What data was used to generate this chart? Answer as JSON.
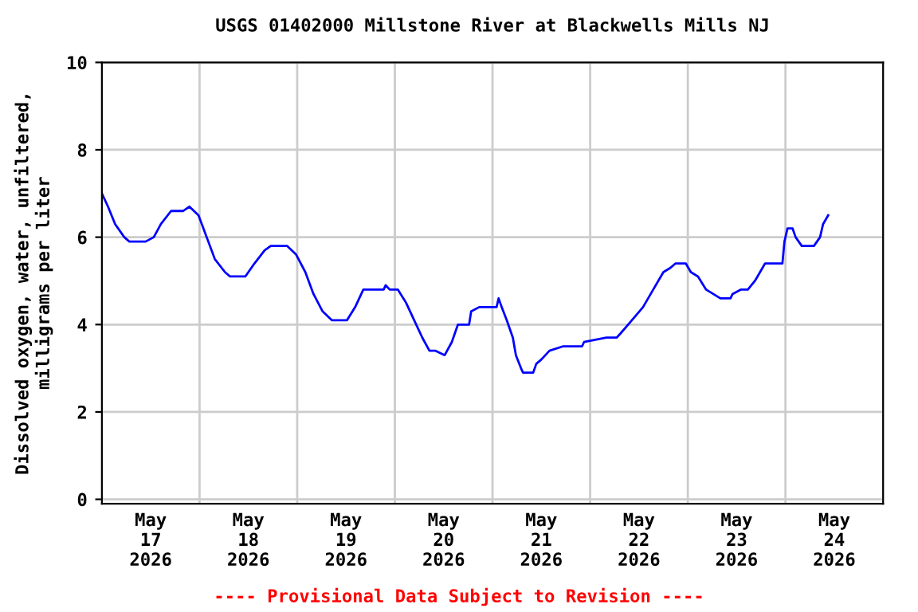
{
  "chart_data": {
    "type": "line",
    "title": "USGS 01402000 Millstone River at Blackwells Mills NJ",
    "ylabel": "Dissolved oxygen, water, unfiltered,\nmilligrams per liter",
    "annotations": [
      "---- Provisional Data Subject to Revision ----"
    ],
    "series": [
      {
        "color": "#0000ff",
        "x": [
          "2026-05-17T00:00",
          "2026-05-17T01:30",
          "2026-05-17T03:15",
          "2026-05-17T05:30",
          "2026-05-17T06:45",
          "2026-05-17T10:45",
          "2026-05-17T12:45",
          "2026-05-17T14:30",
          "2026-05-17T17:00",
          "2026-05-17T20:00",
          "2026-05-17T21:30",
          "2026-05-17T23:45",
          "2026-05-18T01:45",
          "2026-05-18T03:45",
          "2026-05-18T06:15",
          "2026-05-18T07:30",
          "2026-05-18T11:15",
          "2026-05-18T13:30",
          "2026-05-18T16:00",
          "2026-05-18T17:30",
          "2026-05-18T21:30",
          "2026-05-18T23:45",
          "2026-05-19T02:00",
          "2026-05-19T04:00",
          "2026-05-19T06:15",
          "2026-05-19T08:30",
          "2026-05-19T12:15",
          "2026-05-19T14:15",
          "2026-05-19T16:15",
          "2026-05-19T21:15",
          "2026-05-19T21:45",
          "2026-05-19T22:45",
          "2026-05-20T00:45",
          "2026-05-20T02:45",
          "2026-05-20T04:45",
          "2026-05-20T06:45",
          "2026-05-20T08:30",
          "2026-05-20T10:00",
          "2026-05-20T12:15",
          "2026-05-20T14:00",
          "2026-05-20T15:30",
          "2026-05-20T18:15",
          "2026-05-20T18:45",
          "2026-05-20T20:45",
          "2026-05-21T01:00",
          "2026-05-21T01:30",
          "2026-05-21T02:15",
          "2026-05-21T03:30",
          "2026-05-21T05:00",
          "2026-05-21T05:45",
          "2026-05-21T07:00",
          "2026-05-21T07:30",
          "2026-05-21T10:00",
          "2026-05-21T10:45",
          "2026-05-21T12:00",
          "2026-05-21T14:00",
          "2026-05-21T17:15",
          "2026-05-21T22:00",
          "2026-05-21T22:30",
          "2026-05-22T04:00",
          "2026-05-22T06:30",
          "2026-05-22T07:30",
          "2026-05-22T10:15",
          "2026-05-22T13:00",
          "2026-05-22T15:30",
          "2026-05-22T18:00",
          "2026-05-22T19:45",
          "2026-05-22T21:00",
          "2026-05-22T23:30",
          "2026-05-23T00:45",
          "2026-05-23T02:30",
          "2026-05-23T04:30",
          "2026-05-23T06:15",
          "2026-05-23T08:00",
          "2026-05-23T10:30",
          "2026-05-23T11:00",
          "2026-05-23T13:00",
          "2026-05-23T14:45",
          "2026-05-23T16:30",
          "2026-05-23T17:45",
          "2026-05-23T19:00",
          "2026-05-23T23:15",
          "2026-05-23T23:45",
          "2026-05-24T00:30",
          "2026-05-24T01:45",
          "2026-05-24T02:30",
          "2026-05-24T04:00",
          "2026-05-24T05:30",
          "2026-05-24T07:00",
          "2026-05-24T08:30",
          "2026-05-24T09:15",
          "2026-05-24T10:30"
        ],
        "values": [
          7.0,
          6.7,
          6.3,
          6.0,
          5.9,
          5.9,
          6.0,
          6.3,
          6.6,
          6.6,
          6.7,
          6.5,
          6.0,
          5.5,
          5.2,
          5.1,
          5.1,
          5.4,
          5.7,
          5.8,
          5.8,
          5.6,
          5.2,
          4.7,
          4.3,
          4.1,
          4.1,
          4.4,
          4.8,
          4.8,
          4.9,
          4.8,
          4.8,
          4.5,
          4.1,
          3.7,
          3.4,
          3.4,
          3.3,
          3.6,
          4.0,
          4.0,
          4.3,
          4.4,
          4.4,
          4.6,
          4.4,
          4.1,
          3.7,
          3.3,
          3.0,
          2.9,
          2.9,
          3.1,
          3.2,
          3.4,
          3.5,
          3.5,
          3.6,
          3.7,
          3.7,
          3.8,
          4.1,
          4.4,
          4.8,
          5.2,
          5.3,
          5.4,
          5.4,
          5.2,
          5.1,
          4.8,
          4.7,
          4.6,
          4.6,
          4.7,
          4.8,
          4.8,
          5.0,
          5.2,
          5.4,
          5.4,
          5.9,
          6.2,
          6.2,
          6.0,
          5.8,
          5.8,
          5.8,
          6.0,
          6.3,
          6.5
        ]
      }
    ],
    "xlim": [
      "2026-05-17T00:00",
      "2026-05-25T00:00"
    ],
    "xticks": [
      {
        "value": "2026-05-17T00:00",
        "label": null
      },
      {
        "value": "2026-05-17T12:00",
        "label": "May\n17\n2026"
      },
      {
        "value": "2026-05-18T00:00",
        "label": null
      },
      {
        "value": "2026-05-18T12:00",
        "label": "May\n18\n2026"
      },
      {
        "value": "2026-05-19T00:00",
        "label": null
      },
      {
        "value": "2026-05-19T12:00",
        "label": "May\n19\n2026"
      },
      {
        "value": "2026-05-20T00:00",
        "label": null
      },
      {
        "value": "2026-05-20T12:00",
        "label": "May\n20\n2026"
      },
      {
        "value": "2026-05-21T00:00",
        "label": null
      },
      {
        "value": "2026-05-21T12:00",
        "label": "May\n21\n2026"
      },
      {
        "value": "2026-05-22T00:00",
        "label": null
      },
      {
        "value": "2026-05-22T12:00",
        "label": "May\n22\n2026"
      },
      {
        "value": "2026-05-23T00:00",
        "label": null
      },
      {
        "value": "2026-05-23T12:00",
        "label": "May\n23\n2026"
      },
      {
        "value": "2026-05-24T00:00",
        "label": null
      },
      {
        "value": "2026-05-24T12:00",
        "label": "May\n24\n2026"
      },
      {
        "value": "2026-05-25T00:00",
        "label": null
      }
    ],
    "ylim": [
      -0.1,
      10
    ],
    "yticks": [
      0,
      2,
      4,
      6,
      8,
      10
    ],
    "grid": true,
    "legend": false
  }
}
